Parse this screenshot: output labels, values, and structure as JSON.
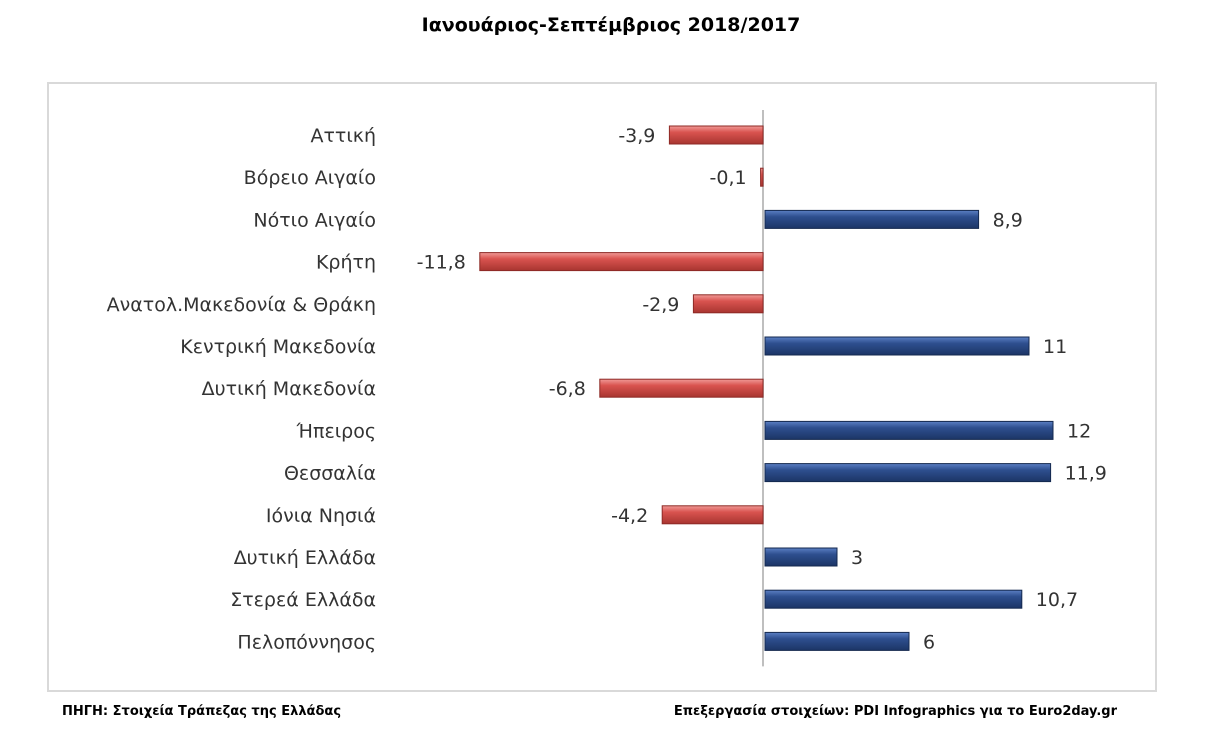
{
  "title": "Ιανουάριος-Σεπτέμβριος 2018/2017",
  "source": "ΠΗΓΗ: Στοιχεία Τράπεζας της Ελλάδας",
  "credit": "Επεξεργασία στοιχείων: PDI Infographics για το Euro2day.gr",
  "chart_data": {
    "type": "bar",
    "orientation": "horizontal",
    "categories": [
      "Αττική",
      "Βόρειο Αιγαίο",
      "Νότιο Αιγαίο",
      "Κρήτη",
      "Ανατολ.Μακεδονία & Θράκη",
      "Κεντρική Μακεδονία",
      "Δυτική Μακεδονία",
      "Ήπειρος",
      "Θεσσαλία",
      "Ιόνια Νησιά",
      "Δυτική Ελλάδα",
      "Στερεά Ελλάδα",
      "Πελοπόννησος"
    ],
    "values": [
      -3.9,
      -0.1,
      8.9,
      -11.8,
      -2.9,
      11,
      -6.8,
      12,
      11.9,
      -4.2,
      3,
      10.7,
      6
    ],
    "data_labels": [
      "-3,9",
      "-0,1",
      "8,9",
      "-11,8",
      "-2,9",
      "11",
      "-6,8",
      "12",
      "11,9",
      "-4,2",
      "3",
      "10,7",
      "6"
    ],
    "xlim": [
      -12,
      12
    ],
    "grid": false,
    "legend": "none",
    "colors": {
      "positive": "#2e4f8f",
      "negative": "#d9534f",
      "axis": "#bfbfbf"
    }
  }
}
